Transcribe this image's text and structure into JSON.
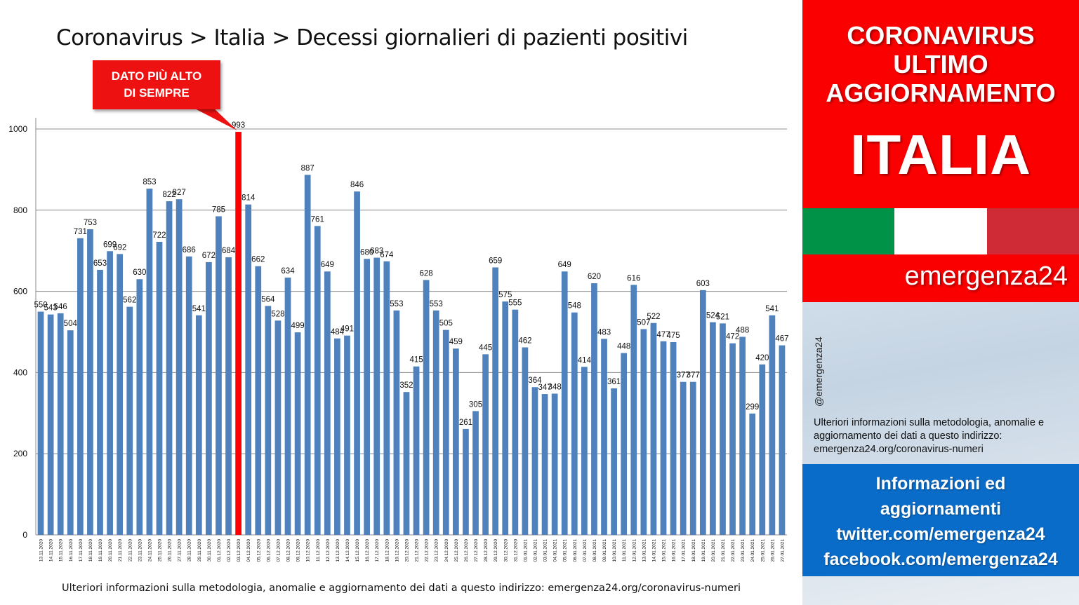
{
  "title": "Coronavirus > Italia > Decessi giornalieri di pazienti positivi",
  "callout": {
    "line1": "DATO PIÙ ALTO",
    "line2": "DI SEMPRE"
  },
  "footnote": "Ulteriori informazioni sulla metodologia, anomalie e aggiornamento dei dati a questo indirizzo: emergenza24.org/coronavirus-numeri",
  "panel": {
    "header_lines": [
      "CORONAVIRUS",
      "ULTIMO",
      "AGGIORNAMENTO"
    ],
    "country": "ITALIA",
    "flag_colors": [
      "#009246",
      "#ffffff",
      "#ce2b37"
    ],
    "brand": "emergenza24",
    "handle": "@emergenza24",
    "info": "Ulteriori informazioni sulla metodologia, anomalie e aggiornamento dei dati a questo indirizzo: emergenza24.org/coronavirus-numeri",
    "info_lines": [
      "Informazioni ed",
      "aggiornamenti",
      "twitter.com/emergenza24",
      "facebook.com/emergenza24"
    ]
  },
  "colors": {
    "bar": "#4f81bd",
    "highlight": "#ff0000",
    "panel_red": "#fb0000",
    "panel_blue": "#0a6cc9"
  },
  "chart_data": {
    "type": "bar",
    "title": "Coronavirus > Italia > Decessi giornalieri di pazienti positivi",
    "xlabel": "",
    "ylabel": "",
    "ylim": [
      0,
      1000
    ],
    "yticks": [
      0,
      200,
      400,
      600,
      800,
      1000
    ],
    "grid": true,
    "highlight_category": "03.12.2020",
    "categories": [
      "13.11.2020",
      "14.11.2020",
      "15.11.2020",
      "16.11.2020",
      "17.11.2020",
      "18.11.2020",
      "19.11.2020",
      "20.11.2020",
      "21.11.2020",
      "22.11.2020",
      "23.11.2020",
      "24.11.2020",
      "25.11.2020",
      "26.11.2020",
      "27.11.2020",
      "28.11.2020",
      "29.11.2020",
      "30.11.2020",
      "01.12.2020",
      "02.12.2020",
      "03.12.2020",
      "04.12.2020",
      "05.12.2020",
      "06.12.2020",
      "07.12.2020",
      "08.12.2020",
      "09.12.2020",
      "10.12.2020",
      "11.12.2020",
      "12.12.2020",
      "13.12.2020",
      "14.12.2020",
      "15.12.2020",
      "16.12.2020",
      "17.12.2020",
      "18.12.2020",
      "19.12.2020",
      "20.12.2020",
      "21.12.2020",
      "22.12.2020",
      "23.12.2020",
      "24.12.2020",
      "25.12.2020",
      "26.12.2020",
      "27.12.2020",
      "28.12.2020",
      "29.12.2020",
      "30.12.2020",
      "31.12.2020",
      "01.01.2021",
      "02.01.2021",
      "03.01.2021",
      "04.01.2021",
      "05.01.2021",
      "06.01.2021",
      "07.01.2021",
      "08.01.2021",
      "09.01.2021",
      "10.01.2021",
      "11.01.2021",
      "12.01.2021",
      "13.01.2021",
      "14.01.2021",
      "15.01.2021",
      "16.01.2021",
      "17.01.2021",
      "18.01.2021",
      "19.01.2021",
      "20.01.2021",
      "21.01.2021",
      "22.01.2021",
      "23.01.2021",
      "24.01.2021",
      "25.01.2021",
      "26.01.2021",
      "27.01.2021"
    ],
    "values": [
      550,
      543,
      546,
      504,
      731,
      753,
      653,
      699,
      692,
      562,
      630,
      853,
      722,
      822,
      827,
      686,
      541,
      672,
      785,
      684,
      993,
      814,
      662,
      564,
      528,
      634,
      499,
      887,
      761,
      649,
      484,
      491,
      846,
      680,
      683,
      674,
      553,
      352,
      415,
      628,
      553,
      505,
      459,
      261,
      305,
      445,
      659,
      575,
      555,
      462,
      364,
      347,
      348,
      649,
      548,
      414,
      620,
      483,
      361,
      448,
      616,
      507,
      522,
      477,
      475,
      377,
      377,
      603,
      524,
      521,
      472,
      488,
      299,
      420,
      541,
      467
    ]
  }
}
